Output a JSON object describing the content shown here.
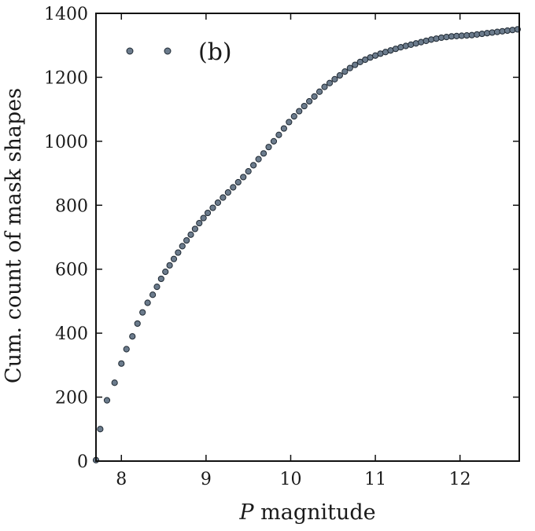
{
  "chart_data": {
    "type": "scatter",
    "title": "",
    "xlabel_italic": "P",
    "xlabel_rest": " magnitude",
    "ylabel": "Cum. count of mask shapes",
    "xlim": [
      7.7,
      12.7
    ],
    "ylim": [
      0,
      1400
    ],
    "xticks": [
      8,
      9,
      10,
      11,
      12
    ],
    "yticks": [
      0,
      200,
      400,
      600,
      800,
      1000,
      1200,
      1400
    ],
    "grid": false,
    "legend_position": "top-left",
    "marker_color": "#6b7b8c",
    "marker_edge": "#1f2933",
    "series": [
      {
        "name": "(b)",
        "x": [
          7.7,
          7.75,
          7.83,
          7.92,
          8.0,
          8.06,
          8.13,
          8.19,
          8.25,
          8.31,
          8.37,
          8.42,
          8.47,
          8.52,
          8.57,
          8.62,
          8.67,
          8.72,
          8.77,
          8.82,
          8.87,
          8.92,
          8.97,
          9.02,
          9.08,
          9.14,
          9.2,
          9.26,
          9.32,
          9.38,
          9.44,
          9.5,
          9.56,
          9.62,
          9.68,
          9.74,
          9.8,
          9.86,
          9.92,
          9.98,
          10.04,
          10.1,
          10.16,
          10.22,
          10.28,
          10.34,
          10.4,
          10.46,
          10.52,
          10.58,
          10.64,
          10.7,
          10.76,
          10.82,
          10.88,
          10.94,
          11.0,
          11.06,
          11.12,
          11.18,
          11.24,
          11.3,
          11.36,
          11.42,
          11.48,
          11.54,
          11.6,
          11.66,
          11.72,
          11.78,
          11.84,
          11.9,
          11.96,
          12.02,
          12.08,
          12.14,
          12.2,
          12.26,
          12.32,
          12.38,
          12.44,
          12.5,
          12.56,
          12.62,
          12.68
        ],
        "y": [
          3,
          100,
          190,
          245,
          305,
          350,
          390,
          430,
          465,
          495,
          520,
          545,
          570,
          592,
          612,
          632,
          652,
          672,
          690,
          708,
          726,
          744,
          760,
          776,
          792,
          808,
          824,
          840,
          856,
          872,
          888,
          906,
          925,
          944,
          962,
          982,
          1000,
          1020,
          1040,
          1060,
          1078,
          1094,
          1110,
          1125,
          1140,
          1155,
          1170,
          1182,
          1194,
          1206,
          1218,
          1229,
          1239,
          1248,
          1255,
          1262,
          1268,
          1274,
          1279,
          1284,
          1289,
          1294,
          1298,
          1302,
          1306,
          1310,
          1314,
          1318,
          1321,
          1324,
          1326,
          1328,
          1329,
          1330,
          1331,
          1332,
          1334,
          1336,
          1338,
          1340,
          1342,
          1344,
          1346,
          1348,
          1350
        ]
      }
    ]
  }
}
